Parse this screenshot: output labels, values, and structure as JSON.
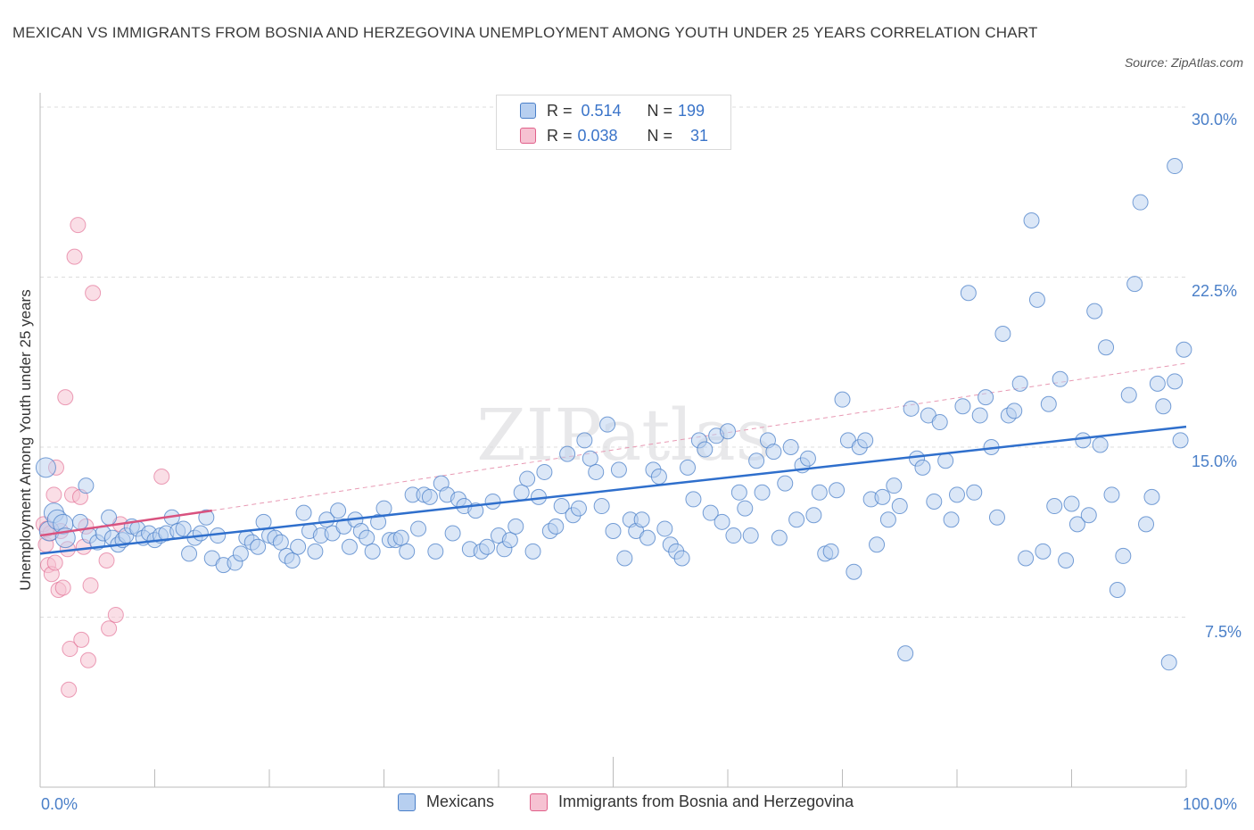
{
  "title": "MEXICAN VS IMMIGRANTS FROM BOSNIA AND HERZEGOVINA UNEMPLOYMENT AMONG YOUTH UNDER 25 YEARS CORRELATION CHART",
  "source": "Source: ZipAtlas.com",
  "watermark": "ZIPatlas",
  "colors": {
    "blue": "#4a7fc8",
    "blue_fill": "#b7cff0",
    "pink": "#e0608a",
    "pink_fill": "#f6c2d2",
    "grid": "#dddddd"
  },
  "stats": {
    "rows": [
      {
        "r_label": "R =",
        "r_value": "0.514",
        "n_label": "N =",
        "n_value": "199"
      },
      {
        "r_label": "R =",
        "r_value": "0.038",
        "n_label": "N =",
        "n_value": "31"
      }
    ]
  },
  "legend": {
    "items": [
      {
        "label": "Mexicans"
      },
      {
        "label": "Immigrants from Bosnia and Herzegovina"
      }
    ]
  },
  "axes": {
    "x_min_label": "0.0%",
    "x_max_label": "100.0%",
    "y_ticks": [
      "30.0%",
      "22.5%",
      "15.0%",
      "7.5%"
    ]
  },
  "chart_data": {
    "type": "scatter",
    "title": "MEXICAN VS IMMIGRANTS FROM BOSNIA AND HERZEGOVINA UNEMPLOYMENT AMONG YOUTH UNDER 25 YEARS CORRELATION CHART",
    "xlabel": "",
    "ylabel": "Unemployment Among Youth under 25 years",
    "xlim": [
      0,
      100
    ],
    "ylim": [
      0,
      30
    ],
    "y_tick_values": [
      7.5,
      15,
      22.5,
      30
    ],
    "grid": true,
    "legend_position": "bottom",
    "series": [
      {
        "name": "Mexicans",
        "color": "#4a7fc8",
        "trend": {
          "x": [
            0,
            100
          ],
          "y": [
            10.3,
            15.9
          ]
        },
        "points": [
          [
            0.5,
            14.1
          ],
          [
            0.8,
            11.3
          ],
          [
            1.2,
            12.1
          ],
          [
            1.5,
            11.8
          ],
          [
            2.0,
            11.6
          ],
          [
            2.2,
            11.0
          ],
          [
            3.5,
            11.7
          ],
          [
            4.0,
            13.3
          ],
          [
            4.3,
            11.1
          ],
          [
            5.0,
            10.8
          ],
          [
            5.5,
            11.2
          ],
          [
            6.0,
            11.9
          ],
          [
            6.3,
            11.0
          ],
          [
            6.8,
            10.7
          ],
          [
            7.2,
            10.9
          ],
          [
            7.5,
            11.1
          ],
          [
            8.0,
            11.5
          ],
          [
            8.5,
            11.4
          ],
          [
            9.0,
            11.0
          ],
          [
            9.5,
            11.2
          ],
          [
            10.0,
            10.9
          ],
          [
            10.5,
            11.1
          ],
          [
            11.0,
            11.2
          ],
          [
            11.5,
            11.9
          ],
          [
            12.0,
            11.3
          ],
          [
            12.5,
            11.4
          ],
          [
            13.0,
            10.3
          ],
          [
            13.5,
            11.0
          ],
          [
            14.0,
            11.2
          ],
          [
            14.5,
            11.9
          ],
          [
            15.0,
            10.1
          ],
          [
            15.5,
            11.1
          ],
          [
            16.0,
            9.8
          ],
          [
            17.0,
            9.9
          ],
          [
            17.5,
            10.3
          ],
          [
            18.0,
            11.0
          ],
          [
            18.5,
            10.8
          ],
          [
            19.0,
            10.6
          ],
          [
            19.5,
            11.7
          ],
          [
            20.0,
            11.1
          ],
          [
            20.5,
            11.0
          ],
          [
            21.0,
            10.8
          ],
          [
            21.5,
            10.2
          ],
          [
            22.0,
            10.0
          ],
          [
            22.5,
            10.6
          ],
          [
            23.0,
            12.1
          ],
          [
            23.5,
            11.3
          ],
          [
            24.0,
            10.4
          ],
          [
            24.5,
            11.1
          ],
          [
            25.0,
            11.8
          ],
          [
            25.5,
            11.2
          ],
          [
            26.0,
            12.2
          ],
          [
            26.5,
            11.5
          ],
          [
            27.0,
            10.6
          ],
          [
            27.5,
            11.8
          ],
          [
            28.0,
            11.3
          ],
          [
            28.5,
            11.0
          ],
          [
            29.0,
            10.4
          ],
          [
            29.5,
            11.7
          ],
          [
            30.0,
            12.3
          ],
          [
            30.5,
            10.9
          ],
          [
            31.0,
            10.9
          ],
          [
            31.5,
            11.0
          ],
          [
            32.0,
            10.4
          ],
          [
            32.5,
            12.9
          ],
          [
            33.0,
            11.4
          ],
          [
            33.5,
            12.9
          ],
          [
            34.0,
            12.8
          ],
          [
            34.5,
            10.4
          ],
          [
            35.0,
            13.4
          ],
          [
            35.5,
            12.9
          ],
          [
            36.0,
            11.2
          ],
          [
            36.5,
            12.7
          ],
          [
            37.0,
            12.4
          ],
          [
            37.5,
            10.5
          ],
          [
            38.0,
            12.2
          ],
          [
            38.5,
            10.4
          ],
          [
            39.0,
            10.6
          ],
          [
            39.5,
            12.6
          ],
          [
            40.0,
            11.1
          ],
          [
            40.5,
            10.5
          ],
          [
            41.0,
            10.9
          ],
          [
            41.5,
            11.5
          ],
          [
            42.0,
            13.0
          ],
          [
            42.5,
            13.6
          ],
          [
            43.0,
            10.4
          ],
          [
            43.5,
            12.8
          ],
          [
            44.0,
            13.9
          ],
          [
            44.5,
            11.3
          ],
          [
            45.0,
            11.5
          ],
          [
            45.5,
            12.4
          ],
          [
            46.0,
            14.7
          ],
          [
            46.5,
            12.0
          ],
          [
            47.0,
            12.3
          ],
          [
            47.5,
            15.3
          ],
          [
            48.0,
            14.5
          ],
          [
            48.5,
            13.9
          ],
          [
            49.0,
            12.4
          ],
          [
            49.5,
            16.0
          ],
          [
            50.0,
            11.3
          ],
          [
            50.5,
            14.0
          ],
          [
            51.0,
            10.1
          ],
          [
            51.5,
            11.8
          ],
          [
            52.0,
            11.3
          ],
          [
            52.5,
            11.8
          ],
          [
            53.0,
            11.0
          ],
          [
            53.5,
            14.0
          ],
          [
            54.0,
            13.7
          ],
          [
            54.5,
            11.4
          ],
          [
            55.0,
            10.7
          ],
          [
            55.5,
            10.4
          ],
          [
            56.0,
            10.1
          ],
          [
            56.5,
            14.1
          ],
          [
            57.0,
            12.7
          ],
          [
            57.5,
            15.3
          ],
          [
            58.0,
            14.9
          ],
          [
            58.5,
            12.1
          ],
          [
            59.0,
            15.5
          ],
          [
            59.5,
            11.7
          ],
          [
            60.0,
            15.7
          ],
          [
            60.5,
            11.1
          ],
          [
            61.0,
            13.0
          ],
          [
            61.5,
            12.3
          ],
          [
            62.0,
            11.1
          ],
          [
            62.5,
            14.4
          ],
          [
            63.0,
            13.0
          ],
          [
            63.5,
            15.3
          ],
          [
            64.0,
            14.8
          ],
          [
            64.5,
            11.0
          ],
          [
            65.0,
            13.4
          ],
          [
            65.5,
            15.0
          ],
          [
            66.0,
            11.8
          ],
          [
            66.5,
            14.2
          ],
          [
            67.0,
            14.5
          ],
          [
            67.5,
            12.0
          ],
          [
            68.0,
            13.0
          ],
          [
            68.5,
            10.3
          ],
          [
            69.0,
            10.4
          ],
          [
            69.5,
            13.1
          ],
          [
            70.0,
            17.1
          ],
          [
            70.5,
            15.3
          ],
          [
            71.0,
            9.5
          ],
          [
            71.5,
            15.0
          ],
          [
            72.0,
            15.3
          ],
          [
            72.5,
            12.7
          ],
          [
            73.0,
            10.7
          ],
          [
            73.5,
            12.8
          ],
          [
            74.0,
            11.8
          ],
          [
            74.5,
            13.3
          ],
          [
            75.0,
            12.4
          ],
          [
            75.5,
            5.9
          ],
          [
            76.0,
            16.7
          ],
          [
            76.5,
            14.5
          ],
          [
            77.0,
            14.1
          ],
          [
            77.5,
            16.4
          ],
          [
            78.0,
            12.6
          ],
          [
            78.5,
            16.1
          ],
          [
            79.0,
            14.4
          ],
          [
            79.5,
            11.8
          ],
          [
            80.0,
            12.9
          ],
          [
            80.5,
            16.8
          ],
          [
            81.0,
            21.8
          ],
          [
            81.5,
            13.0
          ],
          [
            82.0,
            16.4
          ],
          [
            82.5,
            17.2
          ],
          [
            83.0,
            15.0
          ],
          [
            83.5,
            11.9
          ],
          [
            84.0,
            20.0
          ],
          [
            84.5,
            16.4
          ],
          [
            85.0,
            16.6
          ],
          [
            85.5,
            17.8
          ],
          [
            86.0,
            10.1
          ],
          [
            86.5,
            25.0
          ],
          [
            87.0,
            21.5
          ],
          [
            87.5,
            10.4
          ],
          [
            88.0,
            16.9
          ],
          [
            88.5,
            12.4
          ],
          [
            89.0,
            18.0
          ],
          [
            89.5,
            10.0
          ],
          [
            90.0,
            12.5
          ],
          [
            90.5,
            11.6
          ],
          [
            91.0,
            15.3
          ],
          [
            91.5,
            12.0
          ],
          [
            92.0,
            21.0
          ],
          [
            92.5,
            15.1
          ],
          [
            93.0,
            19.4
          ],
          [
            93.5,
            12.9
          ],
          [
            94.0,
            8.7
          ],
          [
            94.5,
            10.2
          ],
          [
            95.0,
            17.3
          ],
          [
            95.5,
            22.2
          ],
          [
            96.0,
            25.8
          ],
          [
            96.5,
            11.6
          ],
          [
            97.0,
            12.8
          ],
          [
            97.5,
            17.8
          ],
          [
            98.0,
            16.8
          ],
          [
            98.5,
            5.5
          ],
          [
            99.0,
            17.9
          ],
          [
            99.5,
            15.3
          ],
          [
            99.0,
            27.4
          ],
          [
            99.8,
            19.3
          ]
        ]
      },
      {
        "name": "Immigrants from Bosnia and Herzegovina",
        "color": "#e0608a",
        "trend": {
          "x": [
            0,
            15
          ],
          "y": [
            11.1,
            12.2
          ]
        },
        "trend_ext": {
          "x": [
            15,
            100
          ],
          "y": [
            12.2,
            18.7
          ]
        },
        "points": [
          [
            0.3,
            11.6
          ],
          [
            0.5,
            10.7
          ],
          [
            0.7,
            9.8
          ],
          [
            0.9,
            11.2
          ],
          [
            1.0,
            9.4
          ],
          [
            1.2,
            12.9
          ],
          [
            1.4,
            14.1
          ],
          [
            1.6,
            8.7
          ],
          [
            1.8,
            11.3
          ],
          [
            2.0,
            8.8
          ],
          [
            2.2,
            17.2
          ],
          [
            2.4,
            10.5
          ],
          [
            2.6,
            6.1
          ],
          [
            2.8,
            12.9
          ],
          [
            2.5,
            4.3
          ],
          [
            3.0,
            23.4
          ],
          [
            3.3,
            24.8
          ],
          [
            3.5,
            12.8
          ],
          [
            3.6,
            6.5
          ],
          [
            3.8,
            10.6
          ],
          [
            4.0,
            11.5
          ],
          [
            4.2,
            5.6
          ],
          [
            4.4,
            8.9
          ],
          [
            4.6,
            21.8
          ],
          [
            5.8,
            10.0
          ],
          [
            6.0,
            7.0
          ],
          [
            6.6,
            7.6
          ],
          [
            7.0,
            11.6
          ],
          [
            10.6,
            13.7
          ],
          [
            1.3,
            9.9
          ],
          [
            0.6,
            11.4
          ]
        ]
      }
    ]
  }
}
